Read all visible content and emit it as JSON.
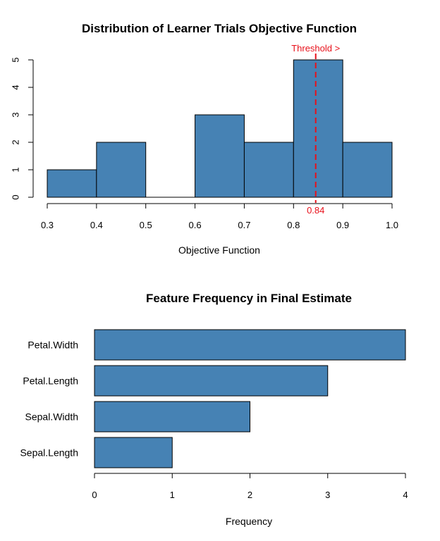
{
  "colors": {
    "bar_fill": "#4682b4",
    "bar_stroke": "#000000",
    "threshold": "#e8101a"
  },
  "chart_data": [
    {
      "type": "bar",
      "subtype": "histogram",
      "title": "Distribution of Learner Trials Objective Function",
      "xlabel": "Objective Function",
      "ylabel": "",
      "bins": [
        [
          0.3,
          0.4
        ],
        [
          0.4,
          0.5
        ],
        [
          0.5,
          0.6
        ],
        [
          0.6,
          0.7
        ],
        [
          0.7,
          0.8
        ],
        [
          0.8,
          0.9
        ],
        [
          0.9,
          1.0
        ]
      ],
      "values": [
        1,
        2,
        0,
        3,
        2,
        5,
        2
      ],
      "xlim": [
        0.3,
        1.0
      ],
      "ylim": [
        0,
        5
      ],
      "xticks": [
        "0.3",
        "0.4",
        "0.5",
        "0.6",
        "0.7",
        "0.8",
        "0.9",
        "1.0"
      ],
      "yticks": [
        "0",
        "1",
        "2",
        "3",
        "4",
        "5"
      ],
      "threshold": {
        "value": 0.845,
        "value_label": "0.84",
        "label": "Threshold >"
      },
      "grid": false
    },
    {
      "type": "bar",
      "orientation": "horizontal",
      "title": "Feature Frequency in Final Estimate",
      "xlabel": "Frequency",
      "ylabel": "",
      "categories": [
        "Petal.Width",
        "Petal.Length",
        "Sepal.Width",
        "Sepal.Length"
      ],
      "values": [
        4,
        3,
        2,
        1
      ],
      "xlim": [
        0,
        4
      ],
      "xticks": [
        "0",
        "1",
        "2",
        "3",
        "4"
      ],
      "grid": false
    }
  ]
}
